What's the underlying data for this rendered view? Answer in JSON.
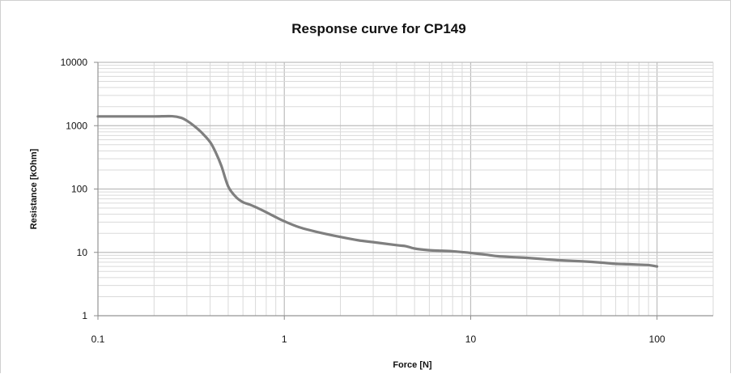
{
  "chart_data": {
    "type": "line",
    "title": "Response curve for CP149",
    "xlabel": "Force [N]",
    "ylabel": "Resistance  [kOhm]",
    "xscale": "log",
    "yscale": "log",
    "xlim": [
      0.1,
      200
    ],
    "ylim": [
      1,
      10000
    ],
    "x_ticks": [
      0.1,
      1,
      10,
      100
    ],
    "x_tick_labels": [
      "0.1",
      "1",
      "10",
      "100"
    ],
    "y_ticks": [
      1,
      10,
      100,
      1000,
      10000
    ],
    "y_tick_labels": [
      "1",
      "10",
      "100",
      "1000",
      "10000"
    ],
    "grid": true,
    "legend": "none",
    "line_color": "#7f7f7f",
    "series": [
      {
        "x": [
          0.1,
          0.15,
          0.2,
          0.25,
          0.28,
          0.3,
          0.33,
          0.36,
          0.4,
          0.43,
          0.46,
          0.5,
          0.55,
          0.6,
          0.65,
          0.7,
          0.8,
          0.9,
          1.0,
          1.2,
          1.5,
          2,
          2.5,
          3,
          4,
          4.5,
          5,
          6,
          7,
          8,
          9,
          10,
          12,
          14,
          17,
          20,
          25,
          30,
          40,
          50,
          60,
          70,
          80,
          90,
          100
        ],
        "y": [
          1400,
          1400,
          1400,
          1410,
          1330,
          1200,
          980,
          780,
          550,
          370,
          230,
          110,
          75,
          62,
          57,
          52,
          43,
          36,
          31,
          25,
          21,
          17.5,
          15.5,
          14.5,
          13,
          12.5,
          11.5,
          10.8,
          10.6,
          10.4,
          10.1,
          9.8,
          9.2,
          8.7,
          8.4,
          8.2,
          7.8,
          7.5,
          7.2,
          6.9,
          6.6,
          6.5,
          6.4,
          6.3,
          6.0
        ]
      }
    ]
  }
}
